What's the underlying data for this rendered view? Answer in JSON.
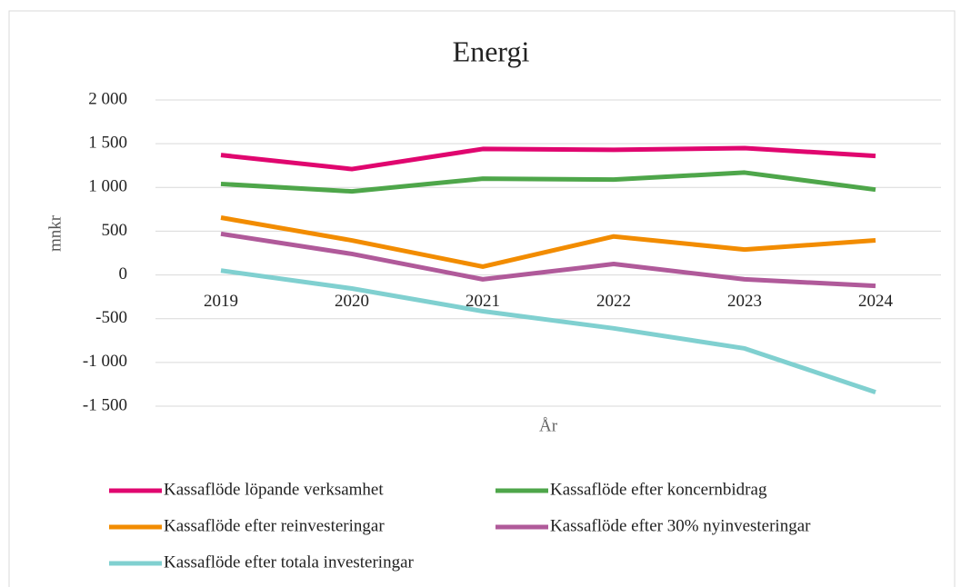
{
  "chart_data": {
    "type": "line",
    "title": "Energi",
    "y_label": "mnkr",
    "x_label": "År",
    "categories": [
      "2019",
      "2020",
      "2021",
      "2022",
      "2023",
      "2024"
    ],
    "series": [
      {
        "name": "Kassaflöde löpande verksamhet",
        "color": "#e0066f",
        "values": [
          1370,
          1210,
          1440,
          1430,
          1450,
          1360
        ]
      },
      {
        "name": "Kassaflöde efter koncernbidrag",
        "color": "#4ea64a",
        "values": [
          1040,
          955,
          1100,
          1090,
          1170,
          975
        ]
      },
      {
        "name": "Kassaflöde efter reinvesteringar",
        "color": "#f28c00",
        "values": [
          655,
          395,
          95,
          440,
          290,
          395
        ]
      },
      {
        "name": "Kassaflöde efter 30% nyinvesteringar",
        "color": "#b05a9a",
        "values": [
          470,
          240,
          -50,
          125,
          -50,
          -125
        ]
      },
      {
        "name": "Kassaflöde efter totala investeringar",
        "color": "#80d0d0",
        "values": [
          50,
          -155,
          -415,
          -610,
          -840,
          -1340
        ]
      }
    ],
    "ylim": [
      -1500,
      2000
    ],
    "yticks": [
      {
        "value": 2000,
        "label": "2 000"
      },
      {
        "value": 1500,
        "label": "1 500"
      },
      {
        "value": 1000,
        "label": "1 000"
      },
      500,
      0,
      -500,
      {
        "value": -1000,
        "label": "-1 000"
      },
      {
        "value": -1500,
        "label": "-1 500"
      }
    ],
    "grid": true,
    "legend": "bottom"
  }
}
